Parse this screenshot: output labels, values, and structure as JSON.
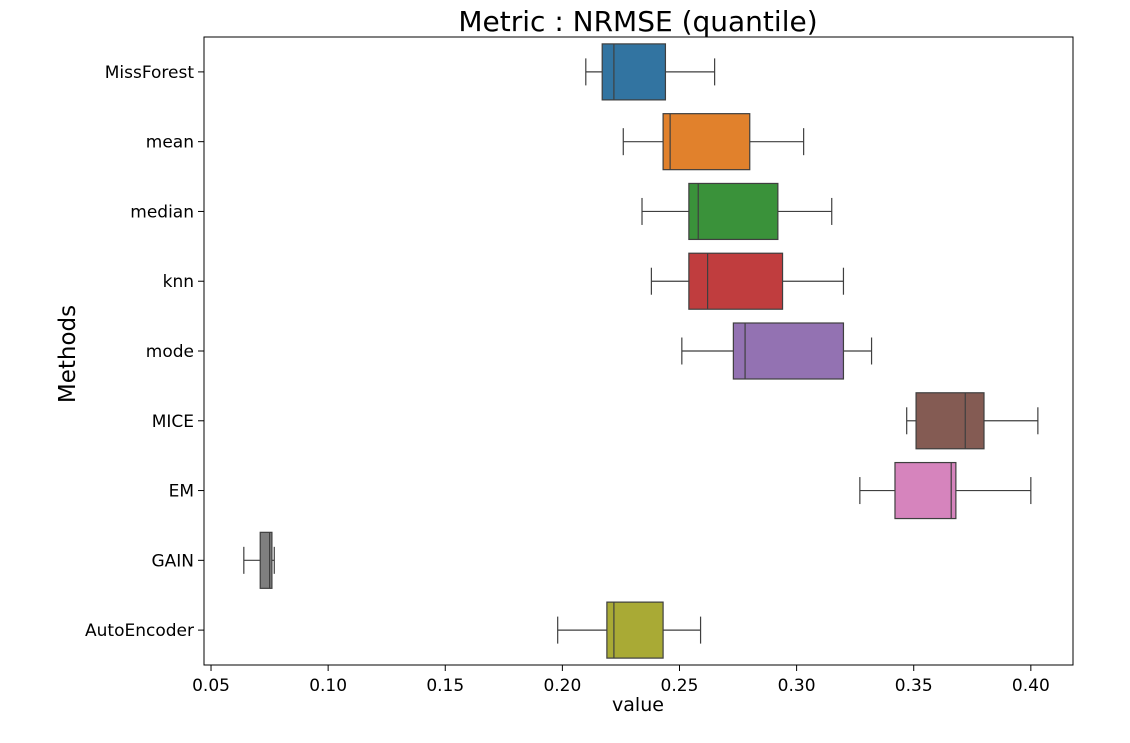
{
  "chart_data": {
    "type": "boxplot",
    "orientation": "horizontal",
    "title": "Metric : NRMSE (quantile)",
    "xlabel": "value",
    "ylabel": "Methods",
    "xlim": [
      0.047,
      0.418
    ],
    "x_ticks": [
      0.05,
      0.1,
      0.15,
      0.2,
      0.25,
      0.3,
      0.35,
      0.4
    ],
    "x_tick_labels": [
      "0.05",
      "0.10",
      "0.15",
      "0.20",
      "0.25",
      "0.30",
      "0.35",
      "0.40"
    ],
    "grid": false,
    "legend": "none",
    "categories": [
      "MissForest",
      "mean",
      "median",
      "knn",
      "mode",
      "MICE",
      "EM",
      "GAIN",
      "AutoEncoder"
    ],
    "series": [
      {
        "whisker_low": 0.21,
        "q1": 0.217,
        "median": 0.222,
        "q3": 0.244,
        "whisker_high": 0.265,
        "color": "#3274a1"
      },
      {
        "whisker_low": 0.226,
        "q1": 0.243,
        "median": 0.246,
        "q3": 0.28,
        "whisker_high": 0.303,
        "color": "#e1812c"
      },
      {
        "whisker_low": 0.234,
        "q1": 0.254,
        "median": 0.258,
        "q3": 0.292,
        "whisker_high": 0.315,
        "color": "#3a923a"
      },
      {
        "whisker_low": 0.238,
        "q1": 0.254,
        "median": 0.262,
        "q3": 0.294,
        "whisker_high": 0.32,
        "color": "#c03d3e"
      },
      {
        "whisker_low": 0.251,
        "q1": 0.273,
        "median": 0.278,
        "q3": 0.32,
        "whisker_high": 0.332,
        "color": "#9372b2"
      },
      {
        "whisker_low": 0.347,
        "q1": 0.351,
        "median": 0.372,
        "q3": 0.38,
        "whisker_high": 0.403,
        "color": "#845b53"
      },
      {
        "whisker_low": 0.327,
        "q1": 0.342,
        "median": 0.366,
        "q3": 0.368,
        "whisker_high": 0.4,
        "color": "#d684bd"
      },
      {
        "whisker_low": 0.064,
        "q1": 0.071,
        "median": 0.075,
        "q3": 0.076,
        "whisker_high": 0.077,
        "color": "#7f7f7f"
      },
      {
        "whisker_low": 0.198,
        "q1": 0.219,
        "median": 0.222,
        "q3": 0.243,
        "whisker_high": 0.259,
        "color": "#a9aa35"
      }
    ]
  }
}
